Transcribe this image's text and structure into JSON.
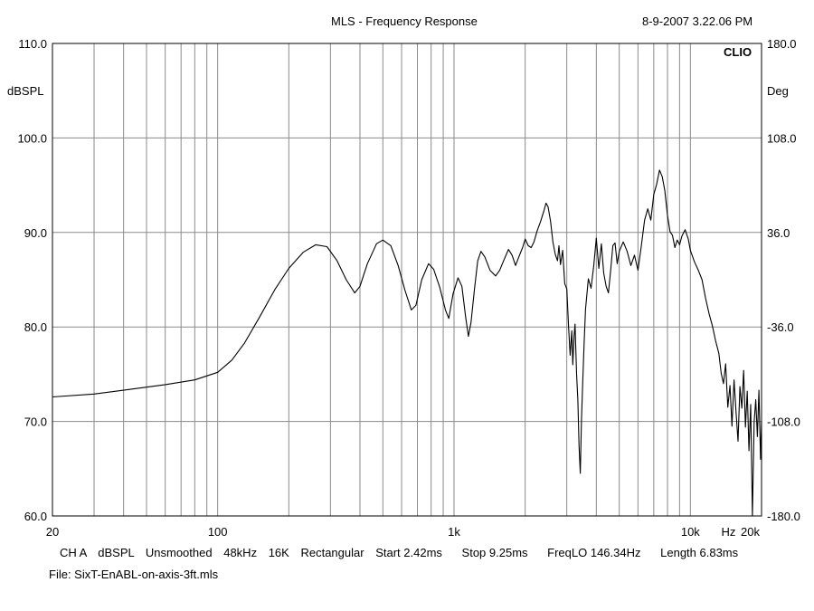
{
  "header": {
    "title": "MLS - Frequency Response",
    "timestamp": "8-9-2007 3.22.06 PM",
    "brand": "CLIO"
  },
  "footer": {
    "settings": [
      "CH A",
      "dBSPL",
      "Unsmoothed",
      "48kHz",
      "16K",
      "Rectangular",
      "Start 2.42ms",
      "Stop 9.25ms",
      "FreqLO 146.34Hz",
      "Length 6.83ms"
    ],
    "file": "File: SixT-EnABL-on-axis-3ft.mls"
  },
  "chart_data": {
    "type": "line",
    "title": "MLS - Frequency Response",
    "xscale": "log",
    "xlim": [
      20,
      20000
    ],
    "ylim": [
      60,
      110
    ],
    "y2lim": [
      -180,
      180
    ],
    "ylabel": "dBSPL",
    "y2label": "Deg",
    "xunit": "Hz",
    "grid": true,
    "x_ticks": [
      {
        "value": 20,
        "label": "20"
      },
      {
        "value": 100,
        "label": "100"
      },
      {
        "value": 1000,
        "label": "1k"
      },
      {
        "value": 10000,
        "label": "10k"
      },
      {
        "value": 20000,
        "label": "20k"
      }
    ],
    "y_ticks": [
      {
        "value": 60,
        "label": "60.0"
      },
      {
        "value": 70,
        "label": "70.0"
      },
      {
        "value": 80,
        "label": "80.0"
      },
      {
        "value": 90,
        "label": "90.0"
      },
      {
        "value": 100,
        "label": "100.0"
      },
      {
        "value": 110,
        "label": "110.0"
      }
    ],
    "y2_ticks": [
      {
        "value": -180,
        "label": "-180.0"
      },
      {
        "value": -108,
        "label": "-108.0"
      },
      {
        "value": -36,
        "label": "-36.0"
      },
      {
        "value": 36,
        "label": "36.0"
      },
      {
        "value": 108,
        "label": "108.0"
      },
      {
        "value": 180,
        "label": "180.0"
      }
    ],
    "series": [
      {
        "color": "#000000",
        "points": [
          [
            20,
            72.6
          ],
          [
            30,
            72.9
          ],
          [
            40,
            73.3
          ],
          [
            60,
            73.9
          ],
          [
            80,
            74.4
          ],
          [
            100,
            75.2
          ],
          [
            115,
            76.5
          ],
          [
            130,
            78.3
          ],
          [
            150,
            81.0
          ],
          [
            175,
            84.0
          ],
          [
            200,
            86.2
          ],
          [
            230,
            87.9
          ],
          [
            260,
            88.7
          ],
          [
            290,
            88.5
          ],
          [
            320,
            87.0
          ],
          [
            350,
            85.0
          ],
          [
            380,
            83.6
          ],
          [
            400,
            84.3
          ],
          [
            430,
            86.7
          ],
          [
            470,
            88.8
          ],
          [
            500,
            89.2
          ],
          [
            540,
            88.6
          ],
          [
            580,
            86.5
          ],
          [
            620,
            83.9
          ],
          [
            660,
            81.8
          ],
          [
            690,
            82.3
          ],
          [
            730,
            85.0
          ],
          [
            780,
            86.7
          ],
          [
            820,
            86.1
          ],
          [
            870,
            84.2
          ],
          [
            920,
            81.8
          ],
          [
            950,
            80.9
          ],
          [
            990,
            83.5
          ],
          [
            1040,
            85.2
          ],
          [
            1080,
            84.3
          ],
          [
            1120,
            81.0
          ],
          [
            1150,
            79.0
          ],
          [
            1180,
            80.5
          ],
          [
            1220,
            84.0
          ],
          [
            1260,
            87.0
          ],
          [
            1300,
            88.0
          ],
          [
            1350,
            87.4
          ],
          [
            1420,
            86.0
          ],
          [
            1500,
            85.4
          ],
          [
            1560,
            86.0
          ],
          [
            1620,
            87.0
          ],
          [
            1700,
            88.2
          ],
          [
            1760,
            87.6
          ],
          [
            1820,
            86.5
          ],
          [
            1880,
            87.4
          ],
          [
            1950,
            88.4
          ],
          [
            2000,
            89.3
          ],
          [
            2060,
            88.6
          ],
          [
            2120,
            88.4
          ],
          [
            2180,
            89.0
          ],
          [
            2250,
            90.2
          ],
          [
            2320,
            91.1
          ],
          [
            2400,
            92.3
          ],
          [
            2450,
            93.1
          ],
          [
            2500,
            92.7
          ],
          [
            2560,
            91.2
          ],
          [
            2620,
            89.0
          ],
          [
            2680,
            87.7
          ],
          [
            2740,
            87.0
          ],
          [
            2780,
            88.6
          ],
          [
            2820,
            86.6
          ],
          [
            2880,
            88.1
          ],
          [
            2940,
            84.6
          ],
          [
            3000,
            84.0
          ],
          [
            3050,
            80.1
          ],
          [
            3100,
            77.0
          ],
          [
            3150,
            79.6
          ],
          [
            3180,
            76.0
          ],
          [
            3220,
            79.0
          ],
          [
            3250,
            80.3
          ],
          [
            3300,
            75.0
          ],
          [
            3340,
            72.3
          ],
          [
            3380,
            67.5
          ],
          [
            3420,
            64.5
          ],
          [
            3460,
            70.1
          ],
          [
            3500,
            73.9
          ],
          [
            3550,
            78.2
          ],
          [
            3600,
            81.9
          ],
          [
            3700,
            85.1
          ],
          [
            3800,
            84.1
          ],
          [
            3900,
            86.5
          ],
          [
            4000,
            89.4
          ],
          [
            4100,
            86.2
          ],
          [
            4200,
            88.8
          ],
          [
            4300,
            85.7
          ],
          [
            4400,
            84.3
          ],
          [
            4500,
            83.6
          ],
          [
            4600,
            86.0
          ],
          [
            4700,
            88.6
          ],
          [
            4800,
            88.9
          ],
          [
            4900,
            86.7
          ],
          [
            5000,
            88.0
          ],
          [
            5200,
            89.0
          ],
          [
            5400,
            88.0
          ],
          [
            5600,
            86.5
          ],
          [
            5800,
            87.6
          ],
          [
            6000,
            86.0
          ],
          [
            6200,
            88.6
          ],
          [
            6400,
            91.3
          ],
          [
            6600,
            92.5
          ],
          [
            6800,
            91.3
          ],
          [
            7000,
            94.0
          ],
          [
            7200,
            95.1
          ],
          [
            7400,
            96.6
          ],
          [
            7600,
            95.9
          ],
          [
            7800,
            94.4
          ],
          [
            8000,
            91.8
          ],
          [
            8200,
            90.1
          ],
          [
            8400,
            89.7
          ],
          [
            8600,
            88.4
          ],
          [
            8800,
            89.2
          ],
          [
            9000,
            88.7
          ],
          [
            9200,
            89.6
          ],
          [
            9500,
            90.3
          ],
          [
            9800,
            89.3
          ],
          [
            10000,
            88.1
          ],
          [
            10400,
            86.9
          ],
          [
            10800,
            86.0
          ],
          [
            11200,
            85.0
          ],
          [
            11600,
            83.0
          ],
          [
            12000,
            81.4
          ],
          [
            12400,
            80.1
          ],
          [
            12800,
            78.5
          ],
          [
            13200,
            77.2
          ],
          [
            13500,
            75.1
          ],
          [
            13800,
            74.0
          ],
          [
            14100,
            76.1
          ],
          [
            14400,
            71.5
          ],
          [
            14700,
            73.8
          ],
          [
            15000,
            69.5
          ],
          [
            15300,
            74.4
          ],
          [
            15600,
            71.0
          ],
          [
            15900,
            67.9
          ],
          [
            16200,
            73.7
          ],
          [
            16500,
            71.4
          ],
          [
            16800,
            75.4
          ],
          [
            17100,
            69.4
          ],
          [
            17400,
            73.2
          ],
          [
            17700,
            66.9
          ],
          [
            18000,
            71.8
          ],
          [
            18300,
            60.0
          ],
          [
            18600,
            69.9
          ],
          [
            18900,
            72.3
          ],
          [
            19200,
            68.4
          ],
          [
            19500,
            73.3
          ],
          [
            19800,
            66.0
          ],
          [
            20000,
            70.0
          ]
        ]
      }
    ]
  }
}
